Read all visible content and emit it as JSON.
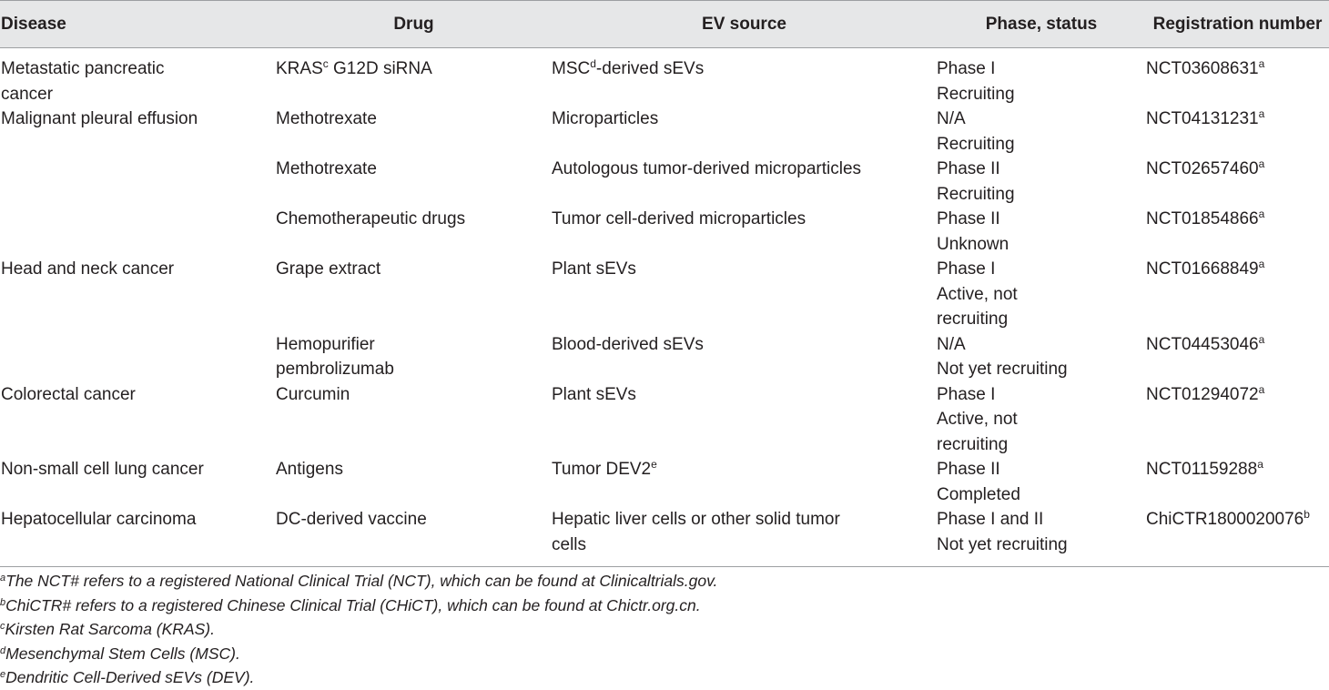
{
  "headers": {
    "disease": "Disease",
    "drug": "Drug",
    "ev_source": "EV source",
    "phase_status": "Phase, status",
    "registration": "Registration number"
  },
  "rows": [
    {
      "disease_1": "Metastatic pancreatic",
      "disease_2": "cancer",
      "drug_1": "KRAS",
      "drug_sup": "c",
      "drug_1b": " G12D siRNA",
      "ev_1": "MSC",
      "ev_sup": "d",
      "ev_1b": "-derived sEVs",
      "phase_1": "Phase I",
      "phase_2": "Recruiting",
      "reg": "NCT03608631",
      "reg_sup": "a"
    },
    {
      "disease_1": "Malignant pleural effusion",
      "drug_1": "Methotrexate",
      "ev_1": "Microparticles",
      "phase_1": "N/A",
      "phase_2": "Recruiting",
      "reg": "NCT04131231",
      "reg_sup": "a"
    },
    {
      "drug_1": "Methotrexate",
      "ev_1": "Autologous tumor-derived microparticles",
      "phase_1": "Phase II",
      "phase_2": "Recruiting",
      "reg": "NCT02657460",
      "reg_sup": "a"
    },
    {
      "drug_1": "Chemotherapeutic drugs",
      "ev_1": "Tumor cell-derived microparticles",
      "phase_1": "Phase II",
      "phase_2": "Unknown",
      "reg": "NCT01854866",
      "reg_sup": "a"
    },
    {
      "disease_1": "Head and neck cancer",
      "drug_1": "Grape extract",
      "ev_1": "Plant sEVs",
      "phase_1": "Phase I",
      "phase_2": "Active, not",
      "phase_3": "recruiting",
      "reg": "NCT01668849",
      "reg_sup": "a"
    },
    {
      "drug_1": "Hemopurifier",
      "drug_2": "pembrolizumab",
      "ev_1": "Blood-derived sEVs",
      "phase_1": "N/A",
      "phase_2": "Not yet recruiting",
      "reg": "NCT04453046",
      "reg_sup": "a"
    },
    {
      "disease_1": "Colorectal cancer",
      "drug_1": "Curcumin",
      "ev_1": "Plant sEVs",
      "phase_1": "Phase I",
      "phase_2": "Active, not",
      "phase_3": "recruiting",
      "reg": "NCT01294072",
      "reg_sup": "a"
    },
    {
      "disease_1": "Non-small cell lung cancer",
      "drug_1": "Antigens",
      "ev_1": "Tumor DEV2",
      "ev_sup": "e",
      "phase_1": "Phase II",
      "phase_2": "Completed",
      "reg": "NCT01159288",
      "reg_sup": "a"
    },
    {
      "disease_1": "Hepatocellular carcinoma",
      "drug_1": "DC-derived vaccine",
      "ev_1": "Hepatic liver cells or other solid tumor",
      "ev_2": "cells",
      "phase_1": "Phase I and II",
      "phase_2": "Not yet recruiting",
      "reg": "ChiCTR1800020076",
      "reg_sup": "b"
    }
  ],
  "footnotes": [
    {
      "mark": "a",
      "text": "The NCT# refers to a registered National Clinical Trial (NCT), which can be found at Clinicaltrials.gov."
    },
    {
      "mark": "b",
      "text": "ChiCTR# refers to a registered Chinese Clinical Trial (CHiCT), which can be found at Chictr.org.cn."
    },
    {
      "mark": "c",
      "text": "Kirsten Rat Sarcoma (KRAS)."
    },
    {
      "mark": "d",
      "text": "Mesenchymal Stem Cells (MSC)."
    },
    {
      "mark": "e",
      "text": "Dendritic Cell-Derived sEVs (DEV)."
    }
  ],
  "colors": {
    "header_bg": "#e6e7e8",
    "rule": "#9d9fa2",
    "text": "#231f20"
  }
}
